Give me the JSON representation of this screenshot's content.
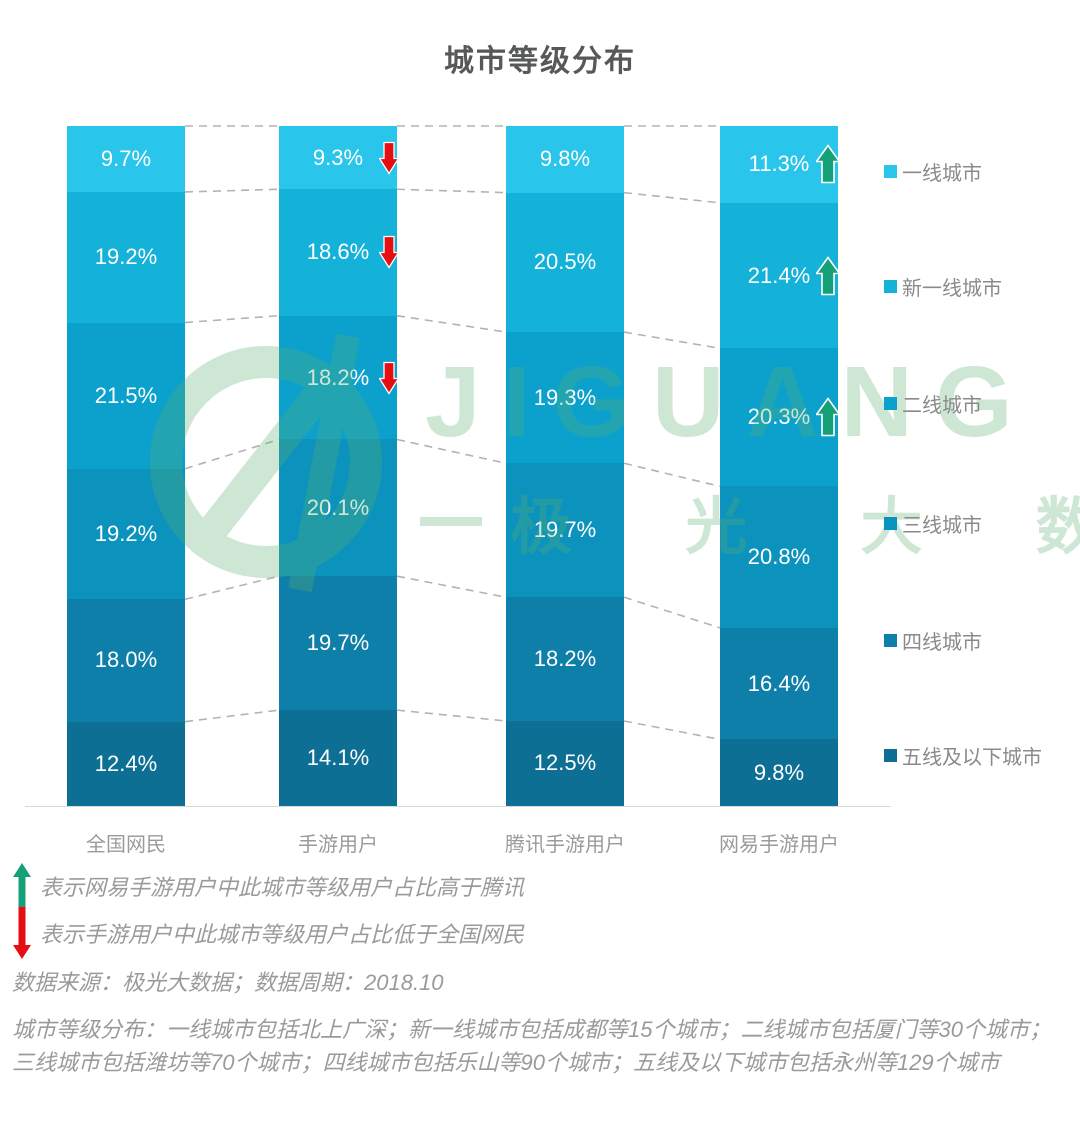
{
  "title": "城市等级分布",
  "colors": {
    "title_text": "#57585a",
    "axis_text": "#9b9b9b",
    "legend_text": "#8a8a8a",
    "note_text": "#9a9a9a",
    "dashed_line": "#b3b3b3",
    "up_arrow": "#16a078",
    "down_arrow": "#e50e13",
    "watermark_green": "#5aae6f"
  },
  "chart_data": {
    "type": "bar",
    "stacked": true,
    "unit": "percent",
    "title": "城市等级分布",
    "categories": [
      "全国网民",
      "手游用户",
      "腾讯手游用户",
      "网易手游用户"
    ],
    "series": [
      {
        "name": "一线城市",
        "color": "#29c5ea",
        "values": [
          9.7,
          9.3,
          9.8,
          11.3
        ]
      },
      {
        "name": "新一线城市",
        "color": "#14b1d9",
        "values": [
          19.2,
          18.6,
          20.5,
          21.4
        ]
      },
      {
        "name": "二线城市",
        "color": "#0ba1cc",
        "values": [
          21.5,
          18.2,
          19.3,
          20.3
        ]
      },
      {
        "name": "三线城市",
        "color": "#0c93bd",
        "values": [
          19.2,
          20.1,
          19.7,
          20.8
        ]
      },
      {
        "name": "四线城市",
        "color": "#0d7fa9",
        "values": [
          18.0,
          19.7,
          18.2,
          16.4
        ]
      },
      {
        "name": "五线及以下城市",
        "color": "#0e6f94",
        "values": [
          12.4,
          14.1,
          12.5,
          9.8
        ]
      }
    ],
    "ylim": [
      0,
      100
    ],
    "grid": false,
    "legend_position": "right",
    "value_label_format": "one_decimal_percent",
    "annotations": {
      "down_arrow_cells": [
        [
          1,
          0
        ],
        [
          1,
          1
        ],
        [
          1,
          2
        ]
      ],
      "up_arrow_cells": [
        [
          3,
          0
        ],
        [
          3,
          1
        ],
        [
          3,
          2
        ]
      ],
      "down_arrow_meaning": "表示手游用户中此城市等级用户占比低于全国网民",
      "up_arrow_meaning": "表示网易手游用户中此城市等级用户占比高于腾讯"
    }
  },
  "watermark": {
    "brand": "JIGUANG",
    "subtext": "极 光 大 数 据"
  },
  "footnotes": {
    "up_note": "表示网易手游用户中此城市等级用户占比高于腾讯",
    "down_note": "表示手游用户中此城市等级用户占比低于全国网民",
    "source": "数据来源：极光大数据；数据周期：2018.10",
    "description": "城市等级分布：一线城市包括北上广深；新一线城市包括成都等15个城市；二线城市包括厦门等30个城市；三线城市包括潍坊等70个城市；四线城市包括乐山等90个城市；五线及以下城市包括永州等129个城市"
  }
}
